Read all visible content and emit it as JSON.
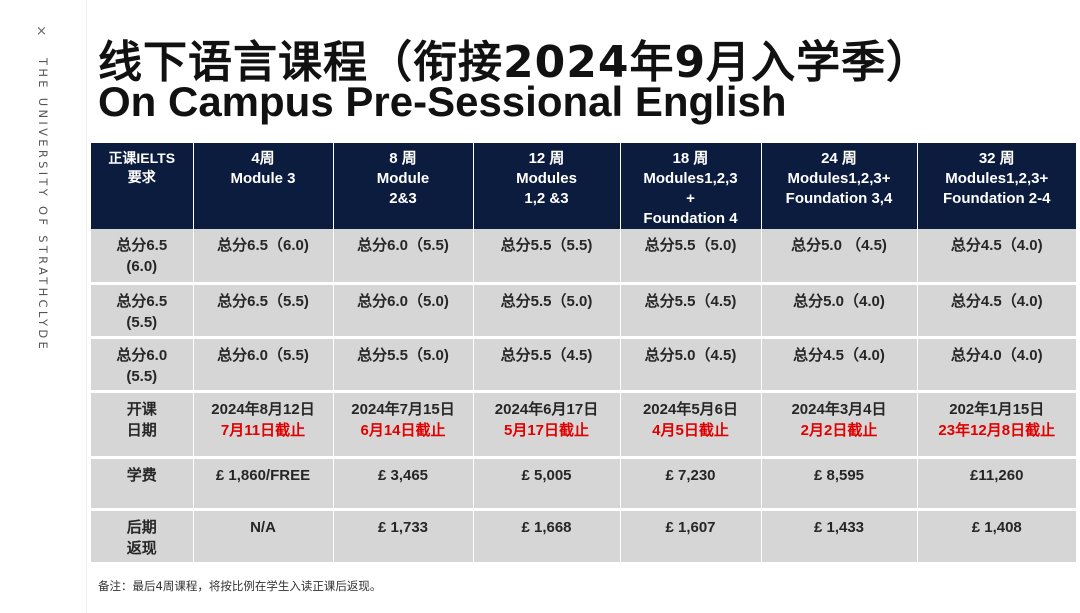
{
  "brand": {
    "close_mark": "×",
    "university": "THE UNIVERSITY OF STRATHCLYDE"
  },
  "title": {
    "cn": "线下语言课程（衔接2024年9月入学季）",
    "en": "On Campus Pre-Sessional English"
  },
  "table": {
    "headers": [
      [
        "正课IELTS",
        "要求"
      ],
      [
        "4周",
        "Module 3"
      ],
      [
        "8 周",
        "Module",
        "2&3"
      ],
      [
        "12 周",
        "Modules",
        "1,2 &3"
      ],
      [
        "18 周",
        "Modules1,2,3",
        "+",
        "Foundation 4"
      ],
      [
        "24 周",
        "Modules1,2,3+",
        "Foundation 3,4"
      ],
      [
        "32 周",
        "Modules1,2,3+",
        "Foundation 2-4"
      ]
    ],
    "score_rows": [
      {
        "req": [
          "总分6.5",
          "(6.0)"
        ],
        "cells": [
          "总分6.5（6.0)",
          "总分6.0（5.5)",
          "总分5.5（5.5)",
          "总分5.5（5.0)",
          "总分5.0 （4.5)",
          "总分4.5（4.0)"
        ]
      },
      {
        "req": [
          "总分6.5",
          "(5.5)"
        ],
        "cells": [
          "总分6.5（5.5)",
          "总分6.0（5.0)",
          "总分5.5（5.0)",
          "总分5.5（4.5)",
          "总分5.0（4.0)",
          "总分4.5（4.0)"
        ]
      },
      {
        "req": [
          "总分6.0",
          "(5.5)"
        ],
        "cells": [
          "总分6.0（5.5)",
          "总分5.5（5.0)",
          "总分5.5（4.5)",
          "总分5.0（4.5)",
          "总分4.5（4.0)",
          "总分4.0（4.0)"
        ]
      }
    ],
    "start_row": {
      "label": [
        "开课",
        "日期"
      ],
      "cells": [
        {
          "date": "2024年8月12日",
          "deadline": "7月11日截止"
        },
        {
          "date": "2024年7月15日",
          "deadline": "6月14日截止"
        },
        {
          "date": "2024年6月17日",
          "deadline": "5月17日截止"
        },
        {
          "date": "2024年5月6日",
          "deadline": "4月5日截止"
        },
        {
          "date": "2024年3月4日",
          "deadline": "2月2日截止"
        },
        {
          "date": "202年1月15日",
          "deadline": "23年12月8日截止"
        }
      ]
    },
    "fee_row": {
      "label": "学费",
      "cells": [
        "£ 1,860/FREE",
        "£ 3,465",
        "£ 5,005",
        "£ 7,230",
        "£ 8,595",
        "£11,260"
      ]
    },
    "rebate_row": {
      "label": [
        "后期",
        "返现"
      ],
      "cells": [
        "N/A",
        "£ 1,733",
        "£ 1,668",
        "£ 1,607",
        "£ 1,433",
        "£ 1,408"
      ]
    }
  },
  "note": "备注：最后4周课程，将按比例在学生入读正课后返现。",
  "colors": {
    "header_bg": "#0c1c3e",
    "cell_bg": "#d6d6d6",
    "deadline_red": "#e00000"
  }
}
